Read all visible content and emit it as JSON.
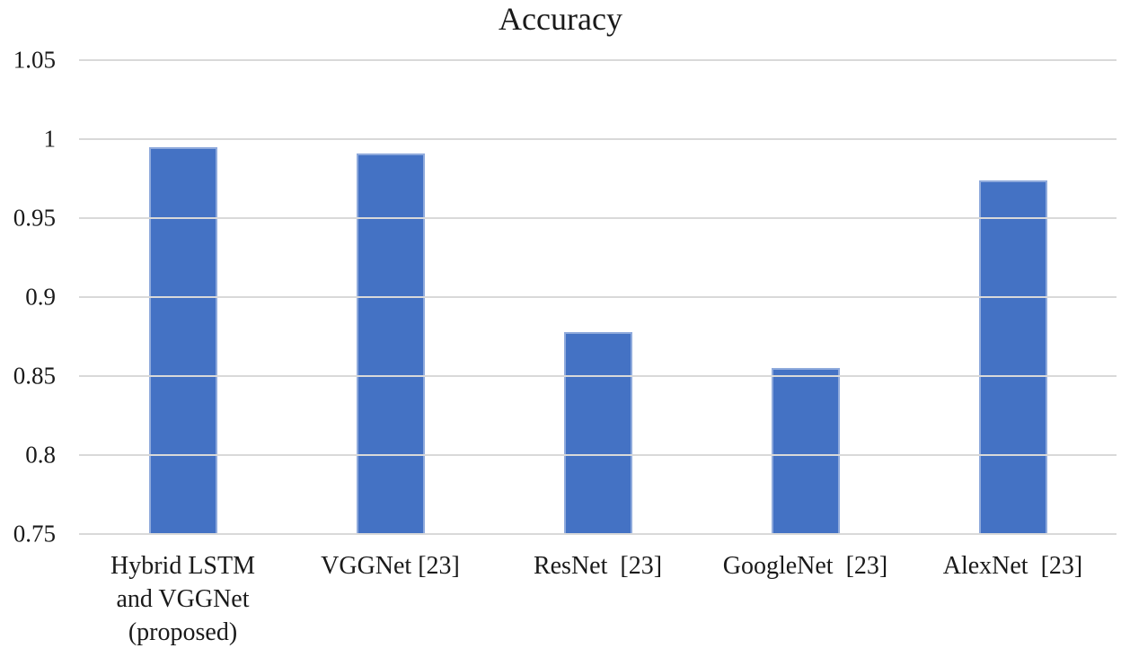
{
  "chart_data": {
    "type": "bar",
    "title": "Accuracy",
    "categories": [
      "Hybrid LSTM\nand VGGNet\n(proposed)",
      "VGGNet [23]",
      "ResNet  [23]",
      "GoogleNet  [23]",
      "AlexNet  [23]"
    ],
    "values": [
      0.995,
      0.991,
      0.878,
      0.855,
      0.974
    ],
    "xlabel": "",
    "ylabel": "",
    "ylim": [
      0.75,
      1.05
    ],
    "yticks": [
      "0.75",
      "0.8",
      "0.85",
      "0.9",
      "0.95",
      "1",
      "1.05"
    ],
    "grid": "horizontal",
    "legend_position": "none",
    "colors": {
      "bar_fill": "#4472C4",
      "bar_border": "#8FAADC",
      "gridline": "#D9D9D9",
      "text": "#1A1A1A",
      "background": "#FFFFFF"
    }
  }
}
